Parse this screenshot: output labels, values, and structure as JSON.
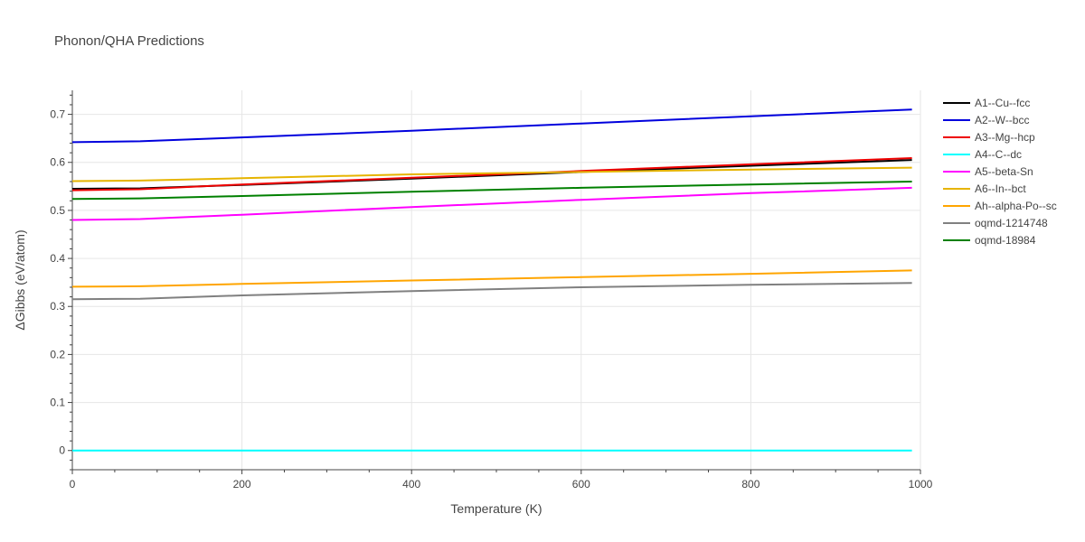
{
  "chart_data": {
    "type": "line",
    "title": "Phonon/QHA Predictions",
    "xlabel": "Temperature (K)",
    "ylabel": "ΔGibbs (eV/atom)",
    "xlim": [
      0,
      1000
    ],
    "ylim": [
      -0.04,
      0.75
    ],
    "xticks": [
      0,
      200,
      400,
      600,
      800,
      1000
    ],
    "yticks": [
      0,
      0.1,
      0.2,
      0.3,
      0.4,
      0.5,
      0.6,
      0.7
    ],
    "xtick_labels": [
      "0",
      "200",
      "400",
      "600",
      "800",
      "1000"
    ],
    "ytick_labels": [
      "0",
      "0.1",
      "0.2",
      "0.3",
      "0.4",
      "0.5",
      "0.6",
      "0.7"
    ],
    "grid": true,
    "legend_position": "right",
    "series": [
      {
        "name": "A1--Cu--fcc",
        "color": "#000000",
        "x": [
          0,
          80,
          200,
          400,
          600,
          800,
          990
        ],
        "y": [
          0.545,
          0.546,
          0.553,
          0.566,
          0.58,
          0.593,
          0.605
        ]
      },
      {
        "name": "A2--W--bcc",
        "color": "#0000dd",
        "x": [
          0,
          80,
          200,
          400,
          600,
          800,
          990
        ],
        "y": [
          0.642,
          0.644,
          0.652,
          0.666,
          0.681,
          0.696,
          0.71
        ]
      },
      {
        "name": "A3--Mg--hcp",
        "color": "#ee0000",
        "x": [
          0,
          80,
          200,
          400,
          600,
          800,
          990
        ],
        "y": [
          0.542,
          0.544,
          0.554,
          0.568,
          0.582,
          0.596,
          0.609
        ]
      },
      {
        "name": "A4--C--dc",
        "color": "#00ffff",
        "x": [
          0,
          80,
          200,
          400,
          600,
          800,
          990
        ],
        "y": [
          0,
          0,
          0,
          0,
          0,
          0,
          0
        ]
      },
      {
        "name": "A5--beta-Sn",
        "color": "#ff00ff",
        "x": [
          0,
          80,
          200,
          400,
          600,
          800,
          990
        ],
        "y": [
          0.48,
          0.482,
          0.491,
          0.507,
          0.522,
          0.536,
          0.547
        ]
      },
      {
        "name": "A6--In--bct",
        "color": "#e6b400",
        "x": [
          0,
          80,
          200,
          400,
          600,
          800,
          990
        ],
        "y": [
          0.561,
          0.562,
          0.567,
          0.575,
          0.58,
          0.585,
          0.589
        ]
      },
      {
        "name": "Ah--alpha-Po--sc",
        "color": "#ffa500",
        "x": [
          0,
          80,
          200,
          400,
          600,
          800,
          990
        ],
        "y": [
          0.341,
          0.342,
          0.347,
          0.354,
          0.361,
          0.368,
          0.375
        ]
      },
      {
        "name": "oqmd-1214748",
        "color": "#808080",
        "x": [
          0,
          80,
          200,
          400,
          600,
          800,
          990
        ],
        "y": [
          0.315,
          0.316,
          0.323,
          0.332,
          0.34,
          0.345,
          0.349
        ]
      },
      {
        "name": "oqmd-18984",
        "color": "#008000",
        "x": [
          0,
          80,
          200,
          400,
          600,
          800,
          990
        ],
        "y": [
          0.524,
          0.525,
          0.53,
          0.539,
          0.547,
          0.554,
          0.56
        ]
      }
    ]
  }
}
